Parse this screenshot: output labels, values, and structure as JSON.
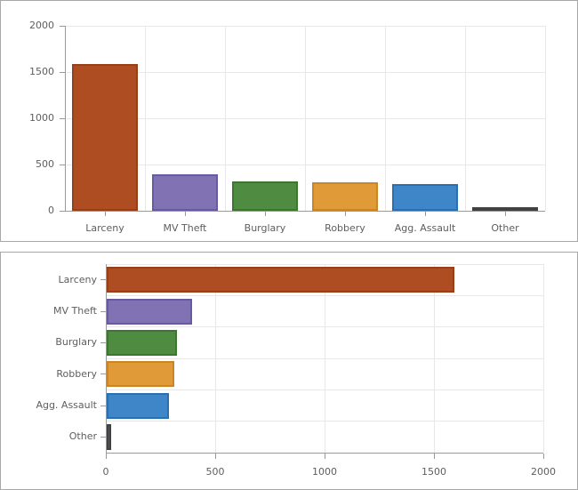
{
  "colors": {
    "panel_border": "#a8a8a8",
    "panel_background": "#ffffff",
    "axis_line": "#9a9a9a",
    "gridline": "#e8e8e8",
    "tick_text": "#5e5e5e"
  },
  "palette": [
    {
      "name": "larceny",
      "fill": "#ae4d21",
      "stroke": "#94411b"
    },
    {
      "name": "mv-theft",
      "fill": "#8172b4",
      "stroke": "#675aa2"
    },
    {
      "name": "burglary",
      "fill": "#4f8b40",
      "stroke": "#3d7531"
    },
    {
      "name": "robbery",
      "fill": "#e09b38",
      "stroke": "#cb8426"
    },
    {
      "name": "agg-assault",
      "fill": "#3e86c7",
      "stroke": "#2b6fb3"
    },
    {
      "name": "other",
      "fill": "#58585a",
      "stroke": "#414143"
    }
  ],
  "chart_data": [
    {
      "type": "bar",
      "orientation": "vertical",
      "title": "",
      "categories": [
        "Larceny",
        "MV Theft",
        "Burglary",
        "Robbery",
        "Agg. Assault",
        "Other"
      ],
      "values": [
        1590,
        390,
        320,
        310,
        285,
        20
      ],
      "xlabel": "",
      "ylabel": "",
      "ylim": [
        0,
        2000
      ],
      "yticks": [
        0,
        500,
        1000,
        1500,
        2000
      ],
      "grid": true,
      "legend": false
    },
    {
      "type": "bar",
      "orientation": "horizontal",
      "title": "",
      "categories": [
        "Larceny",
        "MV Theft",
        "Burglary",
        "Robbery",
        "Agg. Assault",
        "Other"
      ],
      "values": [
        1590,
        390,
        320,
        310,
        285,
        20
      ],
      "xlabel": "",
      "ylabel": "",
      "xlim": [
        0,
        2000
      ],
      "xticks": [
        0,
        500,
        1000,
        1500,
        2000
      ],
      "grid": true,
      "legend": false
    }
  ]
}
